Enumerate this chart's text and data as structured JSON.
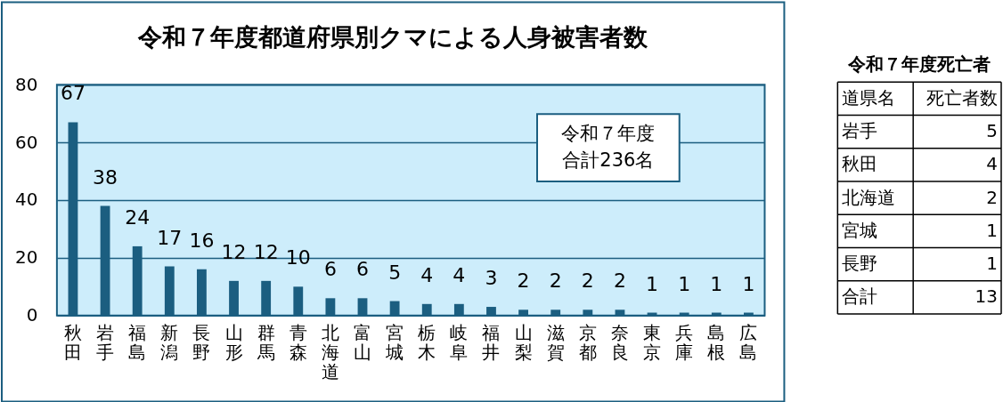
{
  "chart_data": [
    {
      "type": "bar",
      "title": "令和７年度都道府県別クマによる人身被害者数",
      "categories": [
        "秋田",
        "岩手",
        "福島",
        "新潟",
        "長野",
        "山形",
        "群馬",
        "青森",
        "北海道",
        "富山",
        "宮城",
        "栃木",
        "岐阜",
        "福井",
        "山梨",
        "滋賀",
        "京都",
        "奈良",
        "東京",
        "兵庫",
        "島根",
        "広島"
      ],
      "values": [
        67,
        38,
        24,
        17,
        16,
        12,
        12,
        10,
        6,
        6,
        5,
        4,
        4,
        3,
        2,
        2,
        2,
        2,
        1,
        1,
        1,
        1
      ],
      "color": "#1b5e80",
      "ylim": [
        0,
        80
      ],
      "yticks": [
        0,
        20,
        40,
        60,
        80
      ],
      "grid": "y",
      "data_labels": true,
      "annotations": [
        "令和７年度",
        "合計236名"
      ]
    },
    {
      "type": "other",
      "title": "令和７年度死亡者",
      "annotations": [
        "道県名",
        "死亡者数",
        "岩手",
        "5",
        "秋田",
        "4",
        "北海道",
        "2",
        "宮城",
        "1",
        "長野",
        "1",
        "合計",
        "13"
      ]
    }
  ]
}
